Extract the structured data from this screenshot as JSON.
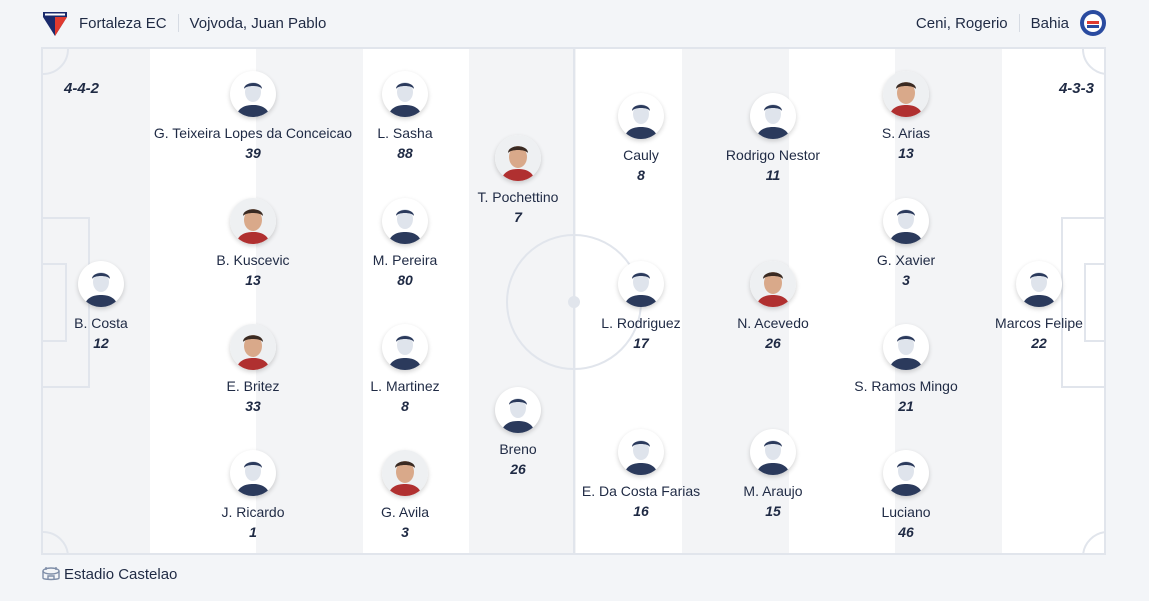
{
  "home": {
    "team": "Fortaleza EC",
    "coach": "Vojvoda, Juan Pablo",
    "formation": "4-4-2",
    "crest_icon": "fortaleza-crest",
    "lines": [
      [
        {
          "name": "B. Costa",
          "number": "12",
          "photo": false
        }
      ],
      [
        {
          "name": "G. Teixeira Lopes da Conceicao",
          "number": "39",
          "photo": false
        },
        {
          "name": "B. Kuscevic",
          "number": "13",
          "photo": true
        },
        {
          "name": "E. Britez",
          "number": "33",
          "photo": true
        },
        {
          "name": "J. Ricardo",
          "number": "1",
          "photo": false
        }
      ],
      [
        {
          "name": "L. Sasha",
          "number": "88",
          "photo": false
        },
        {
          "name": "M. Pereira",
          "number": "80",
          "photo": false
        },
        {
          "name": "L. Martinez",
          "number": "8",
          "photo": false
        },
        {
          "name": "G. Avila",
          "number": "3",
          "photo": true
        }
      ],
      [
        {
          "name": "T. Pochettino",
          "number": "7",
          "photo": true
        },
        {
          "name": "Breno",
          "number": "26",
          "photo": false
        }
      ]
    ]
  },
  "away": {
    "team": "Bahia",
    "coach": "Ceni, Rogerio",
    "formation": "4-3-3",
    "crest_icon": "bahia-crest",
    "lines": [
      [
        {
          "name": "Marcos Felipe",
          "number": "22",
          "photo": false
        }
      ],
      [
        {
          "name": "S. Arias",
          "number": "13",
          "photo": true
        },
        {
          "name": "G. Xavier",
          "number": "3",
          "photo": false
        },
        {
          "name": "S. Ramos Mingo",
          "number": "21",
          "photo": false
        },
        {
          "name": "Luciano",
          "number": "46",
          "photo": false
        }
      ],
      [
        {
          "name": "Rodrigo Nestor",
          "number": "11",
          "photo": false
        },
        {
          "name": "N. Acevedo",
          "number": "26",
          "photo": true
        },
        {
          "name": "M. Araujo",
          "number": "15",
          "photo": false
        }
      ],
      [
        {
          "name": "Cauly",
          "number": "8",
          "photo": false
        },
        {
          "name": "L. Rodriguez",
          "number": "17",
          "photo": false
        },
        {
          "name": "E. Da Costa Farias",
          "number": "16",
          "photo": false
        }
      ]
    ]
  },
  "venue": {
    "name": "Estadio Castelao",
    "icon": "stadium-icon"
  },
  "colors": {
    "text": "#1f2a44",
    "pitch_line": "#e1e5ec",
    "stripe": "#f3f4f6"
  }
}
